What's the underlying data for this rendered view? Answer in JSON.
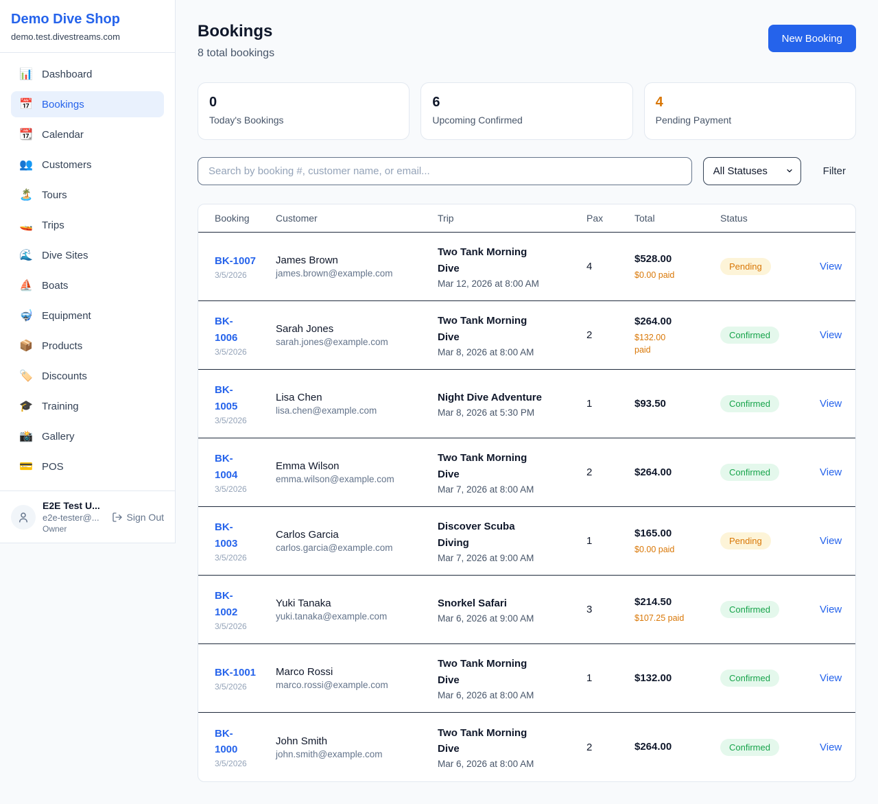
{
  "sidebar": {
    "shop_name": "Demo Dive Shop",
    "shop_domain": "demo.test.divestreams.com",
    "items": [
      {
        "icon": "📊",
        "icon_name": "bar-chart-icon",
        "label": "Dashboard",
        "active": false
      },
      {
        "icon": "📅",
        "icon_name": "calendar-icon",
        "label": "Bookings",
        "active": true
      },
      {
        "icon": "📆",
        "icon_name": "tear-off-calendar-icon",
        "label": "Calendar",
        "active": false
      },
      {
        "icon": "👥",
        "icon_name": "people-icon",
        "label": "Customers",
        "active": false
      },
      {
        "icon": "🏝️",
        "icon_name": "island-icon",
        "label": "Tours",
        "active": false
      },
      {
        "icon": "🚤",
        "icon_name": "speedboat-icon",
        "label": "Trips",
        "active": false
      },
      {
        "icon": "🌊",
        "icon_name": "wave-icon",
        "label": "Dive Sites",
        "active": false
      },
      {
        "icon": "⛵",
        "icon_name": "sailboat-icon",
        "label": "Boats",
        "active": false
      },
      {
        "icon": "🤿",
        "icon_name": "diving-mask-icon",
        "label": "Equipment",
        "active": false
      },
      {
        "icon": "📦",
        "icon_name": "package-icon",
        "label": "Products",
        "active": false
      },
      {
        "icon": "🏷️",
        "icon_name": "tag-icon",
        "label": "Discounts",
        "active": false
      },
      {
        "icon": "🎓",
        "icon_name": "graduation-cap-icon",
        "label": "Training",
        "active": false
      },
      {
        "icon": "📸",
        "icon_name": "camera-icon",
        "label": "Gallery",
        "active": false
      },
      {
        "icon": "💳",
        "icon_name": "credit-card-icon",
        "label": "POS",
        "active": false
      }
    ],
    "user": {
      "name": "E2E Test U...",
      "email": "e2e-tester@...",
      "role": "Owner",
      "sign_out_label": "Sign Out"
    }
  },
  "header": {
    "title": "Bookings",
    "subtitle": "8 total bookings",
    "new_booking_label": "New Booking"
  },
  "stats": {
    "cards": [
      {
        "value": "0",
        "label": "Today's Bookings",
        "accent": false
      },
      {
        "value": "6",
        "label": "Upcoming Confirmed",
        "accent": false
      },
      {
        "value": "4",
        "label": "Pending Payment",
        "accent": true
      }
    ]
  },
  "controls": {
    "search_placeholder": "Search by booking #, customer name, or email...",
    "status_filter_value": "All Statuses",
    "filter_label": "Filter"
  },
  "table": {
    "columns": [
      "Booking",
      "Customer",
      "Trip",
      "Pax",
      "Total",
      "Status"
    ],
    "view_label": "View",
    "rows": [
      {
        "id": "BK-1007",
        "date": "3/5/2026",
        "customer": "James Brown",
        "email": "james.brown@example.com",
        "trip": "Two Tank Morning\nDive",
        "trip_datetime": "Mar 12, 2026 at 8:00 AM",
        "pax": "4",
        "total": "$528.00",
        "paid": "$0.00 paid",
        "status": "Pending"
      },
      {
        "id": "BK-\n1006",
        "date": "3/5/2026",
        "customer": "Sarah Jones",
        "email": "sarah.jones@example.com",
        "trip": "Two Tank Morning\nDive",
        "trip_datetime": "Mar 8, 2026 at 8:00 AM",
        "pax": "2",
        "total": "$264.00",
        "paid": "$132.00\npaid",
        "status": "Confirmed"
      },
      {
        "id": "BK-\n1005",
        "date": "3/5/2026",
        "customer": "Lisa Chen",
        "email": "lisa.chen@example.com",
        "trip": "Night Dive Adventure",
        "trip_datetime": "Mar 8, 2026 at 5:30 PM",
        "pax": "1",
        "total": "$93.50",
        "paid": null,
        "status": "Confirmed"
      },
      {
        "id": "BK-\n1004",
        "date": "3/5/2026",
        "customer": "Emma Wilson",
        "email": "emma.wilson@example.com",
        "trip": "Two Tank Morning\nDive",
        "trip_datetime": "Mar 7, 2026 at 8:00 AM",
        "pax": "2",
        "total": "$264.00",
        "paid": null,
        "status": "Confirmed"
      },
      {
        "id": "BK-\n1003",
        "date": "3/5/2026",
        "customer": "Carlos Garcia",
        "email": "carlos.garcia@example.com",
        "trip": "Discover Scuba\nDiving",
        "trip_datetime": "Mar 7, 2026 at 9:00 AM",
        "pax": "1",
        "total": "$165.00",
        "paid": "$0.00 paid",
        "status": "Pending"
      },
      {
        "id": "BK-\n1002",
        "date": "3/5/2026",
        "customer": "Yuki Tanaka",
        "email": "yuki.tanaka@example.com",
        "trip": "Snorkel Safari",
        "trip_datetime": "Mar 6, 2026 at 9:00 AM",
        "pax": "3",
        "total": "$214.50",
        "paid": "$107.25 paid",
        "status": "Confirmed"
      },
      {
        "id": "BK-1001",
        "date": "3/5/2026",
        "customer": "Marco Rossi",
        "email": "marco.rossi@example.com",
        "trip": "Two Tank Morning\nDive",
        "trip_datetime": "Mar 6, 2026 at 8:00 AM",
        "pax": "1",
        "total": "$132.00",
        "paid": null,
        "status": "Confirmed"
      },
      {
        "id": "BK-\n1000",
        "date": "3/5/2026",
        "customer": "John Smith",
        "email": "john.smith@example.com",
        "trip": "Two Tank Morning\nDive",
        "trip_datetime": "Mar 6, 2026 at 8:00 AM",
        "pax": "2",
        "total": "$264.00",
        "paid": null,
        "status": "Confirmed"
      }
    ]
  },
  "colors": {
    "accent_blue": "#2563eb",
    "pending_text": "#d97706",
    "pending_bg": "#fdf4d8",
    "confirmed_text": "#16a34a",
    "confirmed_bg": "#e4f8ec"
  }
}
